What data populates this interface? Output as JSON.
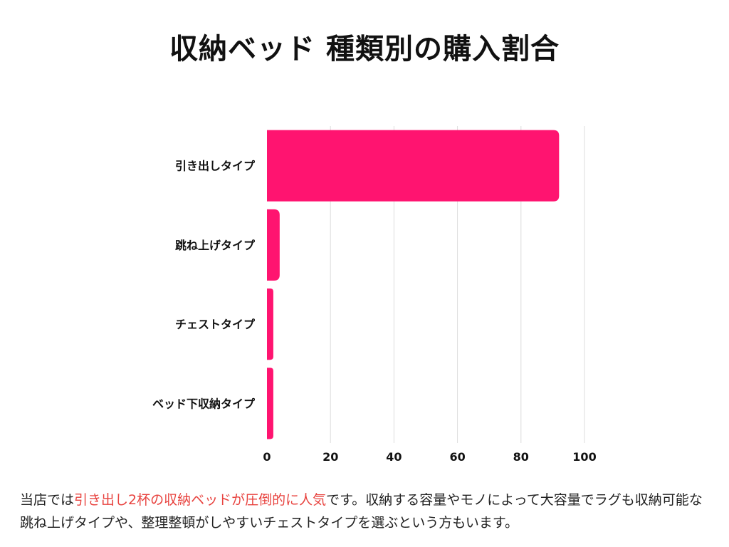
{
  "page": {
    "title": "収納ベッド 種類別の購入割合"
  },
  "chart_data": {
    "type": "bar",
    "orientation": "horizontal",
    "title": "収納ベッド 種類別の購入割合",
    "xlabel": "",
    "ylabel": "",
    "categories": [
      "引き出しタイプ",
      "跳ね上げタイプ",
      "チェストタイプ",
      "ベッド下収納タイプ"
    ],
    "values": [
      92,
      4,
      2,
      2
    ],
    "xlim": [
      0,
      100
    ],
    "xticks": [
      0,
      20,
      40,
      60,
      80,
      100
    ],
    "grid": true,
    "bar_color": "#ff1470",
    "grid_color": "#dcdcdc"
  },
  "footnote": {
    "before": "当店では",
    "highlight": "引き出し2杯の収納ベッドが圧倒的に人気",
    "after": "です。収納する容量やモノによって大容量でラグも収納可能な跳ね上げタイプや、整理整頓がしやすいチェストタイプを選ぶという方もいます。",
    "highlight_color": "#e8433f"
  }
}
